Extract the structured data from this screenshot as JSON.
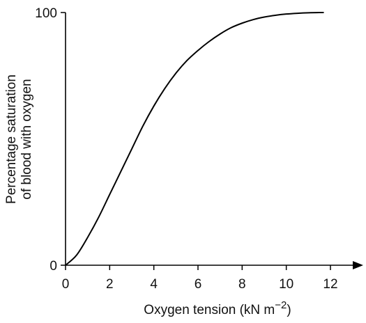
{
  "chart_data": {
    "type": "line",
    "title": "",
    "xlabel": "Oxygen tension (kN m",
    "xlabel_exponent": "−2",
    "xlabel_close": ")",
    "ylabel_lines": [
      "Percentage saturation",
      "of blood with oxygen"
    ],
    "xlim": [
      0,
      12.6
    ],
    "ylim": [
      0,
      100
    ],
    "x_ticks": [
      0,
      2,
      4,
      6,
      8,
      10,
      12
    ],
    "x_tick_labels": [
      "0",
      "2",
      "4",
      "6",
      "8",
      "10",
      "12"
    ],
    "y_ticks": [
      0,
      100
    ],
    "y_tick_labels": [
      "0",
      "100"
    ],
    "grid": false,
    "legend": "none",
    "line_color": "#000000",
    "series": [
      {
        "x": [
          0,
          0.5,
          1.0,
          1.5,
          2.0,
          2.5,
          3.0,
          3.5,
          4.0,
          4.5,
          5.0,
          5.5,
          6.0,
          6.5,
          7.0,
          7.5,
          8.0,
          8.5,
          9.0,
          9.5,
          10.0,
          10.5,
          11.0,
          11.5,
          11.7
        ],
        "y": [
          0,
          4,
          11,
          19,
          28,
          37,
          46,
          55,
          63,
          70,
          76,
          81,
          85,
          88.5,
          91.5,
          94,
          95.8,
          97.2,
          98.2,
          98.9,
          99.4,
          99.7,
          99.9,
          100,
          100
        ]
      }
    ]
  }
}
